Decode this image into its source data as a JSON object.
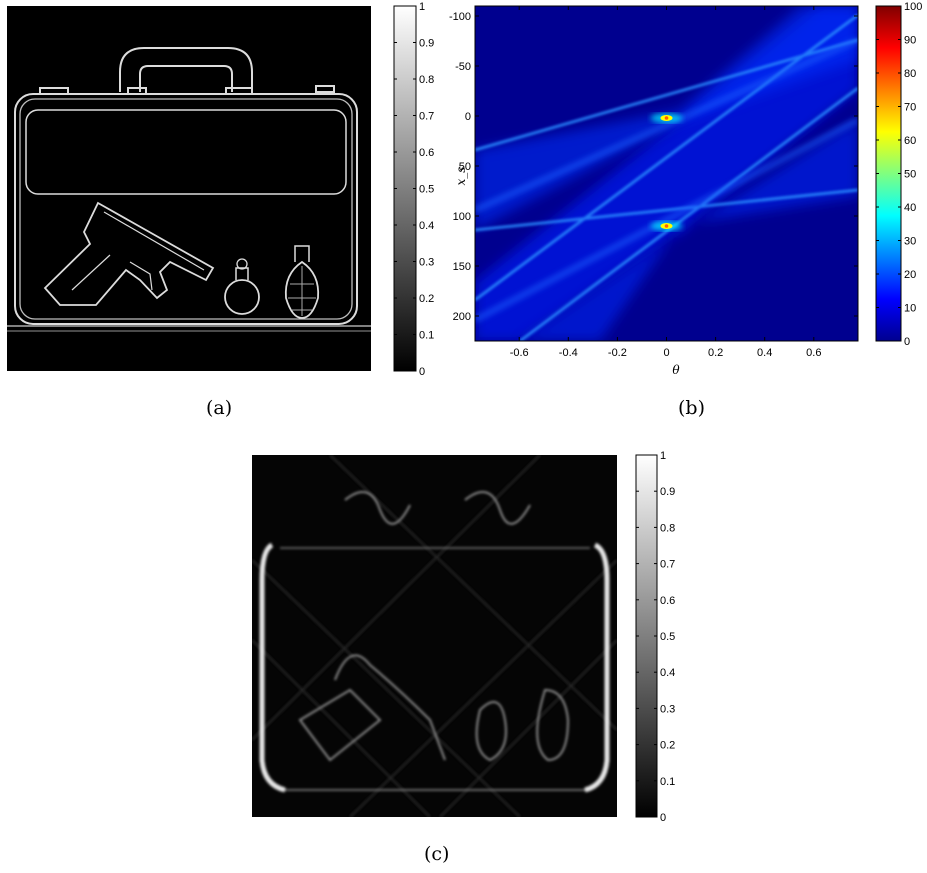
{
  "figure": {
    "captions": {
      "a": "(a)",
      "b": "(b)",
      "c": "(c)"
    }
  },
  "panel_a": {
    "colorbar": {
      "min": 0,
      "max": 1,
      "ticks": [
        "0",
        "0.1",
        "0.2",
        "0.3",
        "0.4",
        "0.5",
        "0.6",
        "0.7",
        "0.8",
        "0.9",
        "1"
      ],
      "colormap": "gray"
    }
  },
  "chart_data": [
    {
      "type": "heatmap",
      "xlabel": "θ",
      "ylabel": "x_s",
      "xlim": [
        -0.78,
        0.78
      ],
      "ylim": [
        -110,
        225
      ],
      "y_inverted": true,
      "x_ticks": [
        "-0.6",
        "-0.4",
        "-0.2",
        "0",
        "0.2",
        "0.4",
        "0.6"
      ],
      "y_ticks": [
        "-100",
        "-50",
        "0",
        "50",
        "100",
        "150",
        "200"
      ],
      "colorbar": {
        "min": 0,
        "max": 100,
        "ticks": [
          "0",
          "10",
          "20",
          "30",
          "40",
          "50",
          "60",
          "70",
          "80",
          "90",
          "100"
        ],
        "colormap": "jet"
      },
      "peaks": [
        {
          "theta": 0,
          "x_s": 2,
          "value": 100
        },
        {
          "theta": 0,
          "x_s": 110,
          "value": 100
        }
      ]
    }
  ],
  "panel_c": {
    "colorbar": {
      "min": 0,
      "max": 1,
      "ticks": [
        "0",
        "0.1",
        "0.2",
        "0.3",
        "0.4",
        "0.5",
        "0.6",
        "0.7",
        "0.8",
        "0.9",
        "1"
      ],
      "colormap": "gray"
    }
  }
}
